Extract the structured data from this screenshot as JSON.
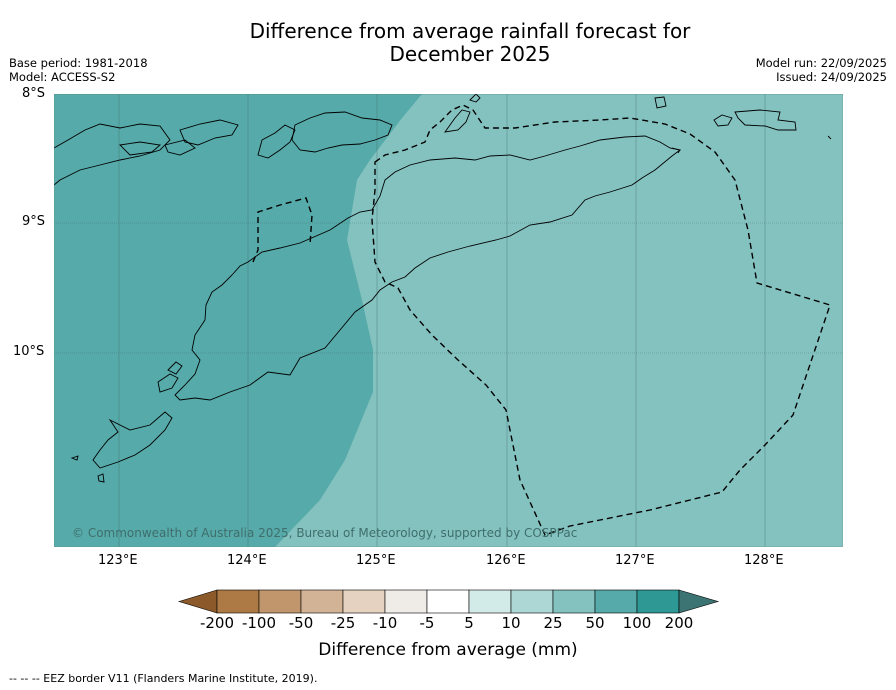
{
  "title": [
    "Difference from average rainfall forecast for",
    "December 2025"
  ],
  "info_left": [
    "Base period: 1981-2018",
    "Model: ACCESS-S2"
  ],
  "info_right": [
    "Model run: 22/09/2025",
    "Issued: 24/09/2025"
  ],
  "latitude_labels": [
    "8°S",
    "9°S",
    "10°S"
  ],
  "longitude_labels": [
    "123°E",
    "124°E",
    "125°E",
    "126°E",
    "127°E",
    "128°E"
  ],
  "copyright": "© Commonwealth of Australia 2025, Bureau of Meteorology, supported by COSPPac",
  "colorbar": {
    "title": "Difference from average (mm)",
    "ticks": [
      "-200",
      "-100",
      "-50",
      "-25",
      "-10",
      "-5",
      "5",
      "10",
      "25",
      "50",
      "100",
      "200"
    ],
    "colors": [
      "#8c5a2a",
      "#ad7a45",
      "#c1966c",
      "#d2b396",
      "#e5d2c0",
      "#efebe7",
      "#ffffff",
      "#d3ebe8",
      "#acd7d5",
      "#84c2c0",
      "#56aaa9",
      "#2e9894",
      "#3b7472"
    ]
  },
  "map": {
    "extent": {
      "lon": [
        122.5,
        128.6
      ],
      "lat": [
        -8.0,
        -11.5
      ]
    },
    "fill_colors": {
      "high": "#56aaa9",
      "moderate": "#84c2c0"
    }
  },
  "footnote": "-- -- -- EEZ border V11 (Flanders Marine Institute, 2019)."
}
